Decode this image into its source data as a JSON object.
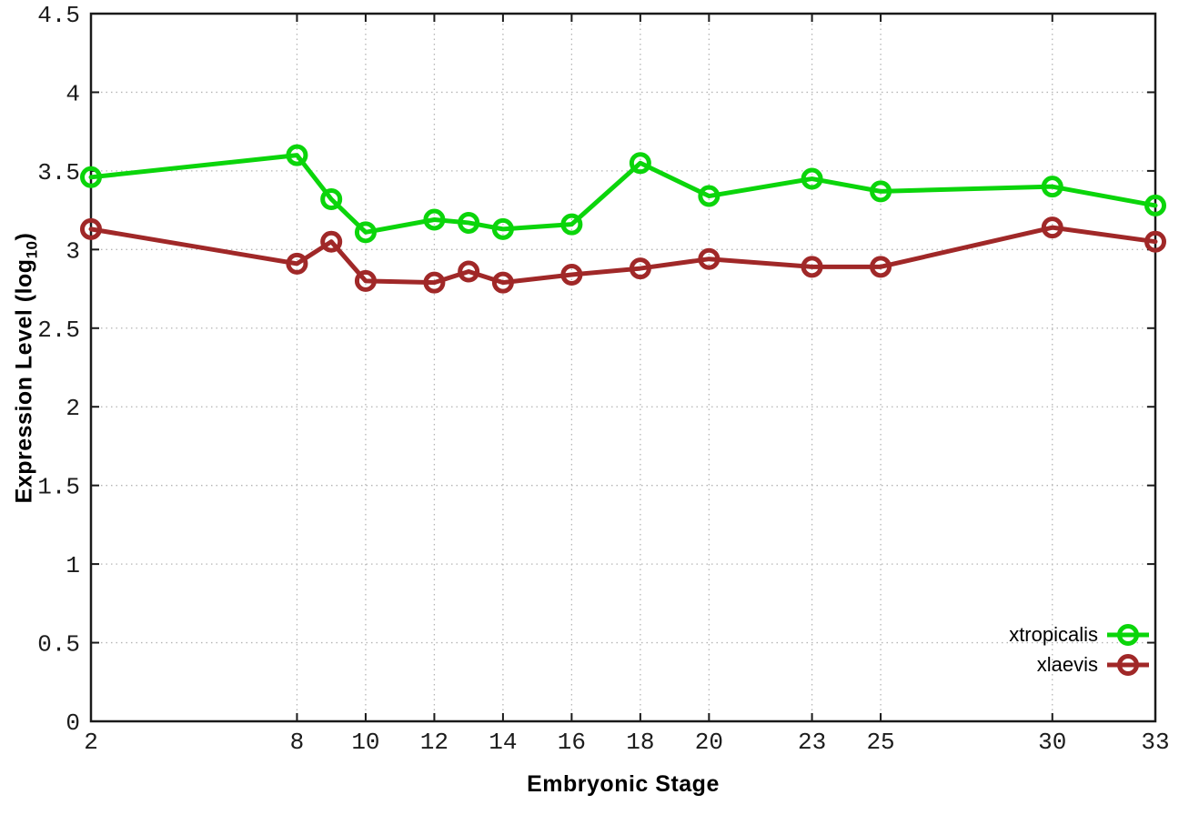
{
  "labels": {
    "x": "Embryonic Stage",
    "y_prefix": "Expression Level (log",
    "y_sub": "10",
    "y_suffix": ")"
  },
  "colors": {
    "xtropicalis": "#0bd50b",
    "xlaevis": "#a02828",
    "grid": "#b5b5b5",
    "axis": "#1a1a1a"
  },
  "chart_data": {
    "type": "line",
    "title": "",
    "xlabel": "Embryonic Stage",
    "ylabel": "Expression Level (log10)",
    "x": [
      2,
      8,
      9,
      10,
      12,
      13,
      14,
      16,
      18,
      20,
      23,
      25,
      30,
      33
    ],
    "series": [
      {
        "name": "xtropicalis",
        "color": "#0bd50b",
        "marker": "open-circle",
        "values": [
          3.46,
          3.6,
          3.32,
          3.11,
          3.19,
          3.17,
          3.13,
          3.16,
          3.55,
          3.34,
          3.45,
          3.37,
          3.4,
          3.28
        ]
      },
      {
        "name": "xlaevis",
        "color": "#a02828",
        "marker": "open-circle",
        "values": [
          3.13,
          2.91,
          3.05,
          2.8,
          2.79,
          2.86,
          2.79,
          2.84,
          2.88,
          2.94,
          2.89,
          2.89,
          3.14,
          3.05
        ]
      }
    ],
    "xlim": [
      2,
      33
    ],
    "ylim": [
      0,
      4.5
    ],
    "xticks": [
      2,
      8,
      10,
      12,
      14,
      16,
      18,
      20,
      23,
      25,
      30,
      33
    ],
    "yticks": [
      0,
      0.5,
      1,
      1.5,
      2,
      2.5,
      3,
      3.5,
      4,
      4.5
    ],
    "grid": "dotted",
    "legend_position": "inside-bottom-right"
  }
}
